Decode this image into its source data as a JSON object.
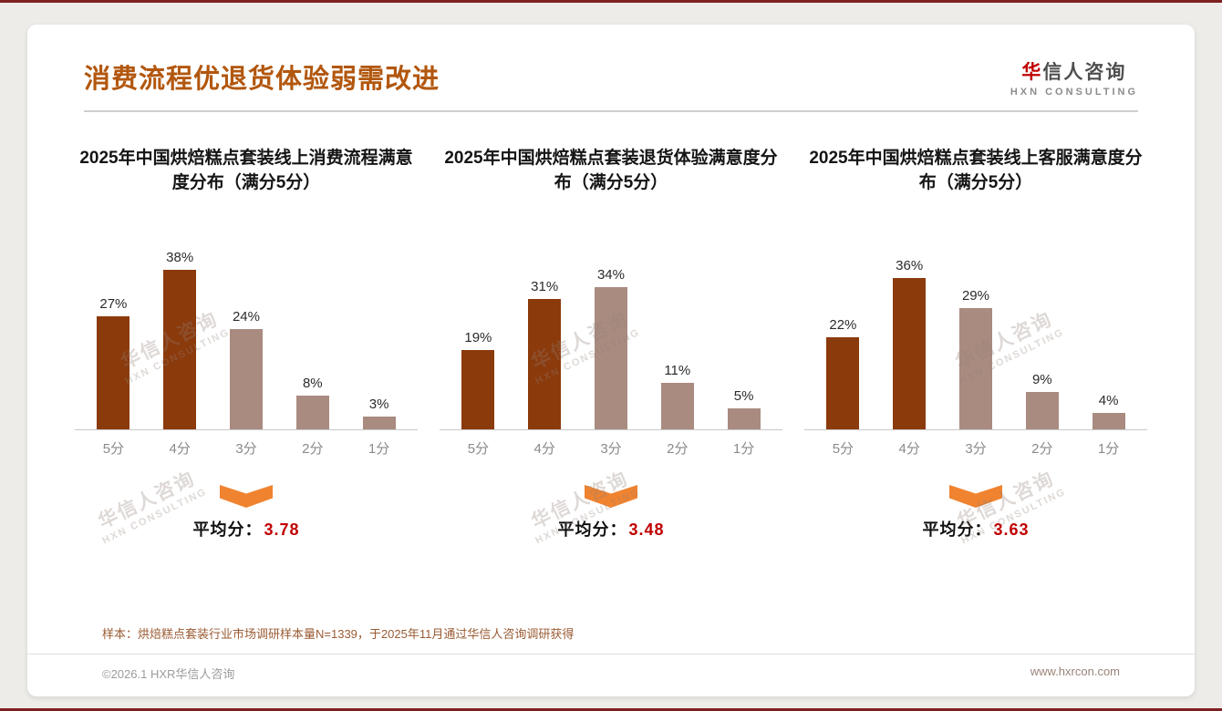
{
  "page": {
    "title": "消费流程优退货体验弱需改进",
    "logo": {
      "name_first": "华",
      "name_rest": "信人咨询",
      "sub": "HXN CONSULTING"
    },
    "watermark": {
      "line1": "华信人咨询",
      "line2": "HXN CONSULTING"
    },
    "footnote": "样本：烘焙糕点套装行业市场调研样本量N=1339，于2025年11月通过华信人咨询调研获得",
    "footer_left": "©2026.1 HXR华信人咨询",
    "footer_right": "www.hxrcon.com"
  },
  "colors": {
    "title": "#B2570E",
    "bar_dark": "#8B3A0C",
    "bar_light": "#A98B80",
    "arrow": "#F08330",
    "average": "#C00000",
    "border_strip": "#7D2020"
  },
  "chart_data": [
    {
      "type": "bar",
      "title": "2025年中国烘焙糕点套装线上消费流程满意度分布（满分5分）",
      "categories": [
        "5分",
        "4分",
        "3分",
        "2分",
        "1分"
      ],
      "values": [
        27,
        38,
        24,
        8,
        3
      ],
      "labels": [
        "27%",
        "38%",
        "24%",
        "8%",
        "3%"
      ],
      "styles": [
        "dark",
        "dark",
        "light",
        "light",
        "light"
      ],
      "ylim": [
        0,
        40
      ],
      "grid": false,
      "average_label": "平均分：",
      "average": "3.78"
    },
    {
      "type": "bar",
      "title": "2025年中国烘焙糕点套装退货体验满意度分布（满分5分）",
      "categories": [
        "5分",
        "4分",
        "3分",
        "2分",
        "1分"
      ],
      "values": [
        19,
        31,
        34,
        11,
        5
      ],
      "labels": [
        "19%",
        "31%",
        "34%",
        "11%",
        "5%"
      ],
      "styles": [
        "dark",
        "dark",
        "light",
        "light",
        "light"
      ],
      "ylim": [
        0,
        40
      ],
      "grid": false,
      "average_label": "平均分：",
      "average": "3.48"
    },
    {
      "type": "bar",
      "title": "2025年中国烘焙糕点套装线上客服满意度分布（满分5分）",
      "categories": [
        "5分",
        "4分",
        "3分",
        "2分",
        "1分"
      ],
      "values": [
        22,
        36,
        29,
        9,
        4
      ],
      "labels": [
        "22%",
        "36%",
        "29%",
        "9%",
        "4%"
      ],
      "styles": [
        "dark",
        "dark",
        "light",
        "light",
        "light"
      ],
      "ylim": [
        0,
        40
      ],
      "grid": false,
      "average_label": "平均分：",
      "average": "3.63"
    }
  ]
}
